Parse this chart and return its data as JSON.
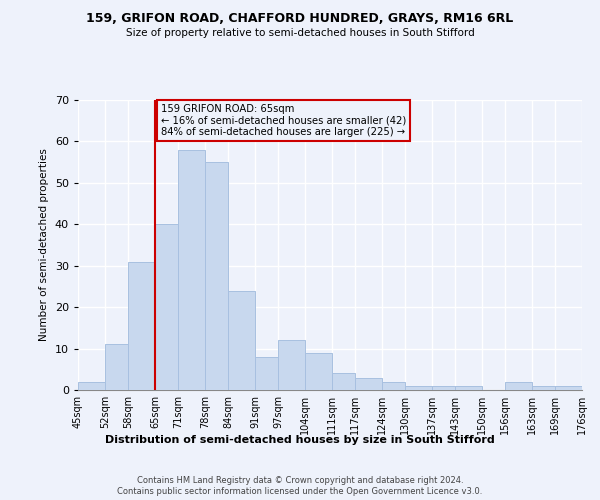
{
  "title1": "159, GRIFON ROAD, CHAFFORD HUNDRED, GRAYS, RM16 6RL",
  "title2": "Size of property relative to semi-detached houses in South Stifford",
  "xlabel": "Distribution of semi-detached houses by size in South Stifford",
  "ylabel": "Number of semi-detached properties",
  "bins": [
    45,
    52,
    58,
    65,
    71,
    78,
    84,
    91,
    97,
    104,
    111,
    117,
    124,
    130,
    137,
    143,
    150,
    156,
    163,
    169,
    176
  ],
  "counts": [
    2,
    11,
    31,
    40,
    58,
    55,
    24,
    8,
    12,
    9,
    4,
    3,
    2,
    1,
    1,
    1,
    0,
    2,
    1,
    1
  ],
  "bar_color": "#c8d8ee",
  "bar_edgecolor": "#a8c0e0",
  "property_size": 65,
  "property_size_label": "159 GRIFON ROAD: 65sqm",
  "pct_smaller": 16,
  "pct_larger": 84,
  "n_smaller": 42,
  "n_larger": 225,
  "vline_color": "#cc0000",
  "box_edgecolor": "#cc0000",
  "ylim": [
    0,
    70
  ],
  "yticks": [
    0,
    10,
    20,
    30,
    40,
    50,
    60,
    70
  ],
  "tick_labels": [
    "45sqm",
    "52sqm",
    "58sqm",
    "65sqm",
    "71sqm",
    "78sqm",
    "84sqm",
    "91sqm",
    "97sqm",
    "104sqm",
    "111sqm",
    "117sqm",
    "124sqm",
    "130sqm",
    "137sqm",
    "143sqm",
    "150sqm",
    "156sqm",
    "163sqm",
    "169sqm",
    "176sqm"
  ],
  "footer1": "Contains HM Land Registry data © Crown copyright and database right 2024.",
  "footer2": "Contains public sector information licensed under the Open Government Licence v3.0.",
  "background_color": "#eef2fb"
}
